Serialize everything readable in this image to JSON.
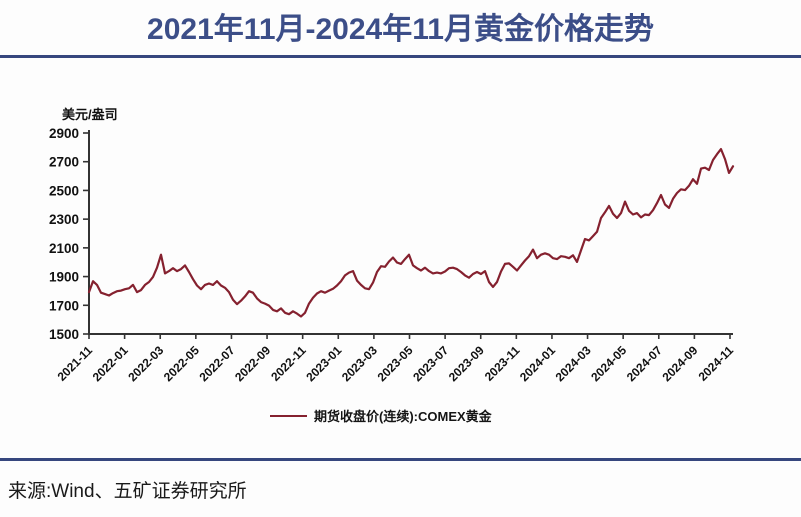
{
  "header": {
    "title": "2021年11月-2024年11月黄金价格走势",
    "title_color": "#3C4E88"
  },
  "footer": {
    "source": "来源:Wind、五矿证券研究所"
  },
  "colors": {
    "divider": "#36477E",
    "axis": "#333333",
    "tick_text": "#111111"
  },
  "chart_data": {
    "type": "line",
    "title": "2021年11月-2024年11月黄金价格走势",
    "ylabel": "美元/盎司",
    "ylim": [
      1500,
      2900
    ],
    "y_ticks": [
      2900,
      2700,
      2500,
      2300,
      2100,
      1900,
      1700,
      1500
    ],
    "x_tick_labels": [
      "2021-11",
      "2022-01",
      "2022-03",
      "2022-05",
      "2022-07",
      "2022-09",
      "2022-11",
      "2023-01",
      "2023-03",
      "2023-05",
      "2023-07",
      "2023-09",
      "2023-11",
      "2024-01",
      "2024-03",
      "2024-05",
      "2024-07",
      "2024-09",
      "2024-11"
    ],
    "grid": false,
    "legend_position": "bottom",
    "series": [
      {
        "name": "期货收盘价(连续):COMEX黄金",
        "color": "#85212F",
        "sampling": "weekly, 2021-11 through late 2024-11",
        "values": [
          1792,
          1868,
          1842,
          1788,
          1778,
          1768,
          1785,
          1798,
          1802,
          1812,
          1818,
          1842,
          1792,
          1806,
          1842,
          1862,
          1898,
          1962,
          2052,
          1922,
          1938,
          1958,
          1938,
          1952,
          1978,
          1932,
          1882,
          1838,
          1812,
          1842,
          1852,
          1842,
          1868,
          1838,
          1822,
          1792,
          1738,
          1708,
          1732,
          1762,
          1798,
          1788,
          1748,
          1722,
          1712,
          1698,
          1668,
          1658,
          1678,
          1648,
          1638,
          1658,
          1642,
          1622,
          1648,
          1712,
          1752,
          1782,
          1798,
          1788,
          1802,
          1815,
          1838,
          1868,
          1908,
          1928,
          1938,
          1872,
          1842,
          1818,
          1812,
          1858,
          1932,
          1972,
          1968,
          2005,
          2032,
          1998,
          1988,
          2022,
          2052,
          1978,
          1958,
          1942,
          1962,
          1938,
          1922,
          1928,
          1922,
          1935,
          1958,
          1962,
          1952,
          1932,
          1908,
          1892,
          1918,
          1932,
          1918,
          1938,
          1862,
          1828,
          1862,
          1935,
          1988,
          1992,
          1968,
          1942,
          1978,
          2012,
          2042,
          2088,
          2028,
          2052,
          2062,
          2052,
          2028,
          2022,
          2042,
          2038,
          2028,
          2048,
          2002,
          2082,
          2162,
          2152,
          2182,
          2212,
          2308,
          2348,
          2392,
          2338,
          2308,
          2342,
          2422,
          2358,
          2332,
          2342,
          2312,
          2332,
          2328,
          2362,
          2412,
          2468,
          2402,
          2378,
          2442,
          2482,
          2508,
          2502,
          2532,
          2578,
          2546,
          2652,
          2658,
          2642,
          2712,
          2752,
          2788,
          2718,
          2622,
          2668
        ]
      }
    ]
  }
}
